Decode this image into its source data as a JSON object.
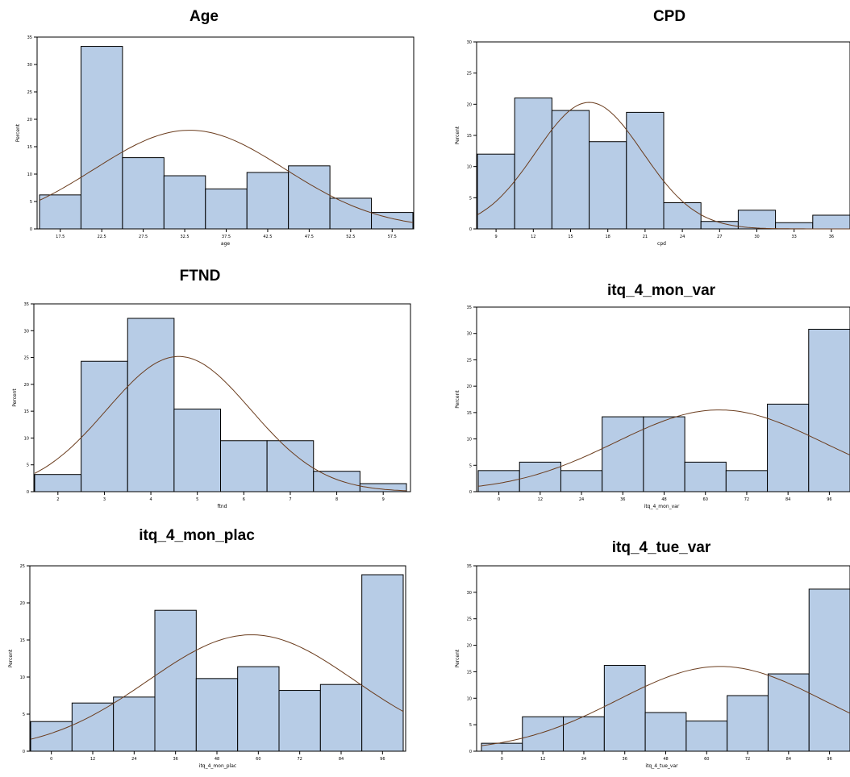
{
  "chart_data": [
    {
      "type": "bar",
      "title": "Age",
      "xlabel": "age",
      "ylabel": "Percent",
      "ylim": [
        0,
        35
      ],
      "yticks": [
        "0",
        "5",
        "10",
        "15",
        "20",
        "25",
        "30",
        "35"
      ],
      "xticks": [
        "17.5",
        "22.5",
        "27.5",
        "32.5",
        "37.5",
        "42.5",
        "47.5",
        "52.5",
        "57.5"
      ],
      "categories": [
        "17.5",
        "22.5",
        "27.5",
        "32.5",
        "37.5",
        "42.5",
        "47.5",
        "52.5",
        "57.5"
      ],
      "values": [
        6.2,
        33.3,
        13.0,
        9.7,
        7.3,
        10.3,
        11.5,
        5.6,
        3.0
      ],
      "normal_curve": {
        "mean": 33.1,
        "sd": 11.5,
        "peak": 18.0
      }
    },
    {
      "type": "bar",
      "title": "CPD",
      "xlabel": "cpd",
      "ylabel": "Percent",
      "ylim": [
        0,
        30
      ],
      "yticks": [
        "0",
        "5",
        "10",
        "15",
        "20",
        "25",
        "30"
      ],
      "xticks": [
        "9",
        "12",
        "15",
        "18",
        "21",
        "24",
        "27",
        "30",
        "33",
        "36"
      ],
      "categories": [
        "9",
        "12",
        "15",
        "18",
        "21",
        "24",
        "27",
        "30",
        "33",
        "36"
      ],
      "values": [
        12.0,
        21.0,
        19.0,
        14.0,
        18.7,
        4.2,
        1.2,
        3.0,
        1.0,
        2.2
      ],
      "normal_curve": {
        "mean": 16.5,
        "sd": 4.3,
        "peak": 20.3
      }
    },
    {
      "type": "bar",
      "title": "FTND",
      "xlabel": "ftnd",
      "ylabel": "Percent",
      "ylim": [
        0,
        35
      ],
      "yticks": [
        "0",
        "5",
        "10",
        "15",
        "20",
        "25",
        "30",
        "35"
      ],
      "xticks": [
        "2",
        "3",
        "4",
        "5",
        "6",
        "7",
        "8",
        "9"
      ],
      "categories": [
        "2",
        "3",
        "4",
        "5",
        "6",
        "7",
        "8",
        "9"
      ],
      "values": [
        3.2,
        24.3,
        32.3,
        15.4,
        9.5,
        9.5,
        3.8,
        1.5
      ],
      "normal_curve": {
        "mean": 4.6,
        "sd": 1.55,
        "peak": 25.2
      }
    },
    {
      "type": "bar",
      "title": "itq_4_mon_var",
      "xlabel": "itq_4_mon_var",
      "ylabel": "Percent",
      "ylim": [
        0,
        35
      ],
      "yticks": [
        "0",
        "5",
        "10",
        "15",
        "20",
        "25",
        "30",
        "35"
      ],
      "xticks": [
        "0",
        "12",
        "24",
        "36",
        "48",
        "60",
        "72",
        "84",
        "96"
      ],
      "categories": [
        "0",
        "12",
        "24",
        "36",
        "48",
        "60",
        "72",
        "84",
        "96"
      ],
      "values": [
        4.0,
        5.6,
        4.0,
        14.2,
        14.2,
        5.6,
        4.0,
        16.6,
        30.8
      ],
      "normal_curve": {
        "mean": 64.0,
        "sd": 30.0,
        "peak": 15.5
      }
    },
    {
      "type": "bar",
      "title": "itq_4_mon_plac",
      "xlabel": "itq_4_mon_plac",
      "ylabel": "Percent",
      "ylim": [
        0,
        25
      ],
      "yticks": [
        "0",
        "5",
        "10",
        "15",
        "20",
        "25"
      ],
      "xticks": [
        "0",
        "12",
        "24",
        "36",
        "48",
        "60",
        "72",
        "84",
        "96"
      ],
      "categories": [
        "0",
        "12",
        "24",
        "36",
        "48",
        "60",
        "72",
        "84",
        "96"
      ],
      "values": [
        4.0,
        6.5,
        7.3,
        19.0,
        9.8,
        11.4,
        8.2,
        9.0,
        23.8
      ],
      "normal_curve": {
        "mean": 58.0,
        "sd": 30.0,
        "peak": 15.7
      }
    },
    {
      "type": "bar",
      "title": "itq_4_tue_var",
      "xlabel": "itq_4_tue_var",
      "ylabel": "Percent",
      "ylim": [
        0,
        35
      ],
      "yticks": [
        "0",
        "5",
        "10",
        "15",
        "20",
        "25",
        "30",
        "35"
      ],
      "xticks": [
        "0",
        "12",
        "24",
        "36",
        "48",
        "60",
        "72",
        "84",
        "96"
      ],
      "categories": [
        "0",
        "12",
        "24",
        "36",
        "48",
        "60",
        "72",
        "84",
        "96"
      ],
      "values": [
        1.5,
        6.5,
        6.5,
        16.2,
        7.3,
        5.7,
        10.5,
        14.6,
        30.6
      ],
      "normal_curve": {
        "mean": 64.0,
        "sd": 30.0,
        "peak": 16.0
      }
    }
  ],
  "colors": {
    "bar_fill": "#b7cce6",
    "bar_stroke": "#000000",
    "curve": "#6b3d1e",
    "frame": "#000000"
  }
}
